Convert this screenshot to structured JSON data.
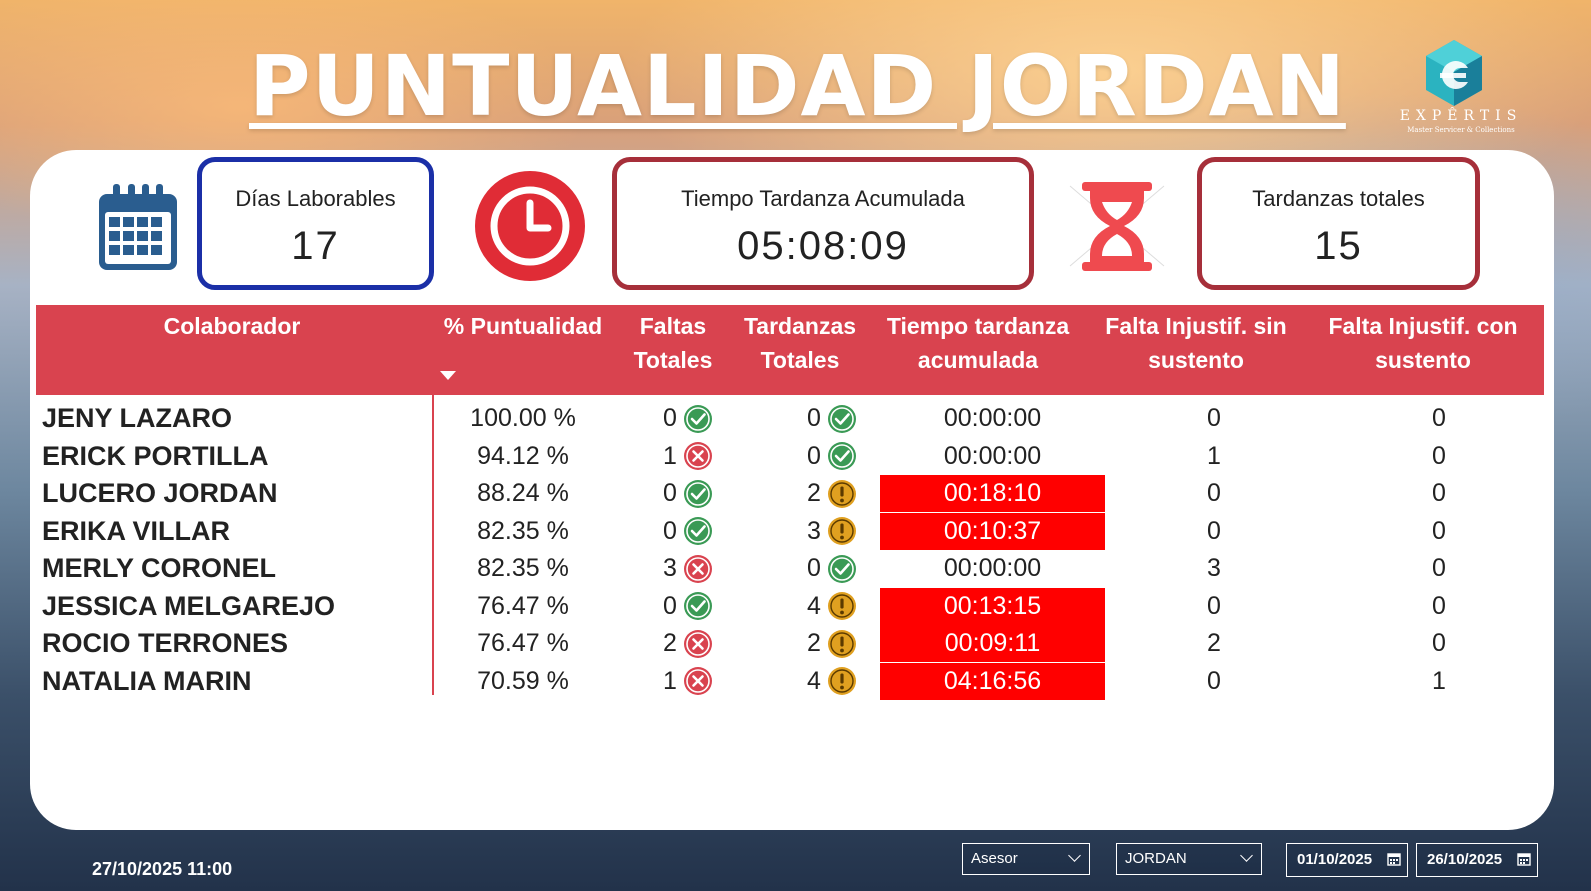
{
  "title": "PUNTUALIDAD JORDAN",
  "logo": {
    "word": "EXPÊRTIS",
    "tagline": "Master Servicer & Collections"
  },
  "kpis": {
    "dias": {
      "label": "Días Laborables",
      "value": "17",
      "icon": "calendar-icon"
    },
    "tiempo": {
      "label": "Tiempo Tardanza Acumulada",
      "value": "05:08:09",
      "icon": "clock-icon"
    },
    "tardanzas": {
      "label": "Tardanzas totales",
      "value": "15",
      "icon": "hourglass-icon"
    }
  },
  "colors": {
    "header": "#d9434f",
    "late_cell": "#ff0000",
    "ok": "#3a9a55",
    "bad": "#d9434f",
    "warn": "#e0a020",
    "kpi_blue": "#1b2fa7",
    "kpi_red": "#a62f3a"
  },
  "table": {
    "headers": {
      "colaborador": "Colaborador",
      "puntualidad": "% Puntualidad",
      "faltas_1": "Faltas",
      "faltas_2": "Totales",
      "tardanzas_1": "Tardanzas",
      "tardanzas_2": "Totales",
      "tiempo_1": "Tiempo tardanza",
      "tiempo_2": "acumulada",
      "sin_1": "Falta Injustif. sin",
      "sin_2": "sustento",
      "con_1": "Falta Injustif. con",
      "con_2": "sustento"
    },
    "rows": [
      {
        "name": "JENY LAZARO",
        "pct": "100.00 %",
        "faltas": "0",
        "faltas_status": "ok",
        "tard": "0",
        "tard_status": "ok",
        "tiempo": "00:00:00",
        "late": false,
        "sin": "0",
        "con": "0"
      },
      {
        "name": "ERICK PORTILLA",
        "pct": "94.12 %",
        "faltas": "1",
        "faltas_status": "bad",
        "tard": "0",
        "tard_status": "ok",
        "tiempo": "00:00:00",
        "late": false,
        "sin": "1",
        "con": "0"
      },
      {
        "name": "LUCERO JORDAN",
        "pct": "88.24 %",
        "faltas": "0",
        "faltas_status": "ok",
        "tard": "2",
        "tard_status": "warn",
        "tiempo": "00:18:10",
        "late": true,
        "sin": "0",
        "con": "0"
      },
      {
        "name": "ERIKA VILLAR",
        "pct": "82.35 %",
        "faltas": "0",
        "faltas_status": "ok",
        "tard": "3",
        "tard_status": "warn",
        "tiempo": "00:10:37",
        "late": true,
        "sin": "0",
        "con": "0"
      },
      {
        "name": "MERLY CORONEL",
        "pct": "82.35 %",
        "faltas": "3",
        "faltas_status": "bad",
        "tard": "0",
        "tard_status": "ok",
        "tiempo": "00:00:00",
        "late": false,
        "sin": "3",
        "con": "0"
      },
      {
        "name": "JESSICA MELGAREJO",
        "pct": "76.47 %",
        "faltas": "0",
        "faltas_status": "ok",
        "tard": "4",
        "tard_status": "warn",
        "tiempo": "00:13:15",
        "late": true,
        "sin": "0",
        "con": "0"
      },
      {
        "name": "ROCIO TERRONES",
        "pct": "76.47 %",
        "faltas": "2",
        "faltas_status": "bad",
        "tard": "2",
        "tard_status": "warn",
        "tiempo": "00:09:11",
        "late": true,
        "sin": "2",
        "con": "0"
      },
      {
        "name": "NATALIA MARIN",
        "pct": "70.59 %",
        "faltas": "1",
        "faltas_status": "bad",
        "tard": "4",
        "tard_status": "warn",
        "tiempo": "04:16:56",
        "late": true,
        "sin": "0",
        "con": "1"
      }
    ]
  },
  "footer": {
    "timestamp": "27/10/2025 11:00",
    "slicer_role": "Asesor",
    "slicer_name": "JORDAN",
    "date_from": "01/10/2025",
    "date_to": "26/10/2025"
  }
}
